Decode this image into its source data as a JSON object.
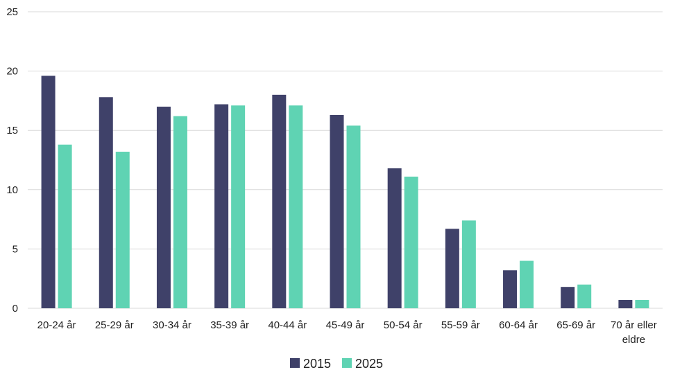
{
  "chart_data": {
    "type": "bar",
    "title": "",
    "xlabel": "",
    "ylabel": "",
    "ylim": [
      0,
      25
    ],
    "yticks": [
      0,
      5,
      10,
      15,
      20,
      25
    ],
    "grid": true,
    "legend_position": "bottom-center",
    "categories": [
      "20-24 år",
      "25-29 år",
      "30-34 år",
      "35-39 år",
      "40-44 år",
      "45-49 år",
      "50-54 år",
      "55-59 år",
      "60-64 år",
      "65-69 år",
      "70 år eller eldre"
    ],
    "series": [
      {
        "name": "2015",
        "color": "#3f4169",
        "values": [
          19.6,
          17.8,
          17.0,
          17.2,
          18.0,
          16.3,
          11.8,
          6.7,
          3.2,
          1.8,
          0.7
        ]
      },
      {
        "name": "2025",
        "color": "#5fd3b3",
        "values": [
          13.8,
          13.2,
          16.2,
          17.1,
          17.1,
          15.4,
          11.1,
          7.4,
          4.0,
          2.0,
          0.7
        ]
      }
    ]
  }
}
